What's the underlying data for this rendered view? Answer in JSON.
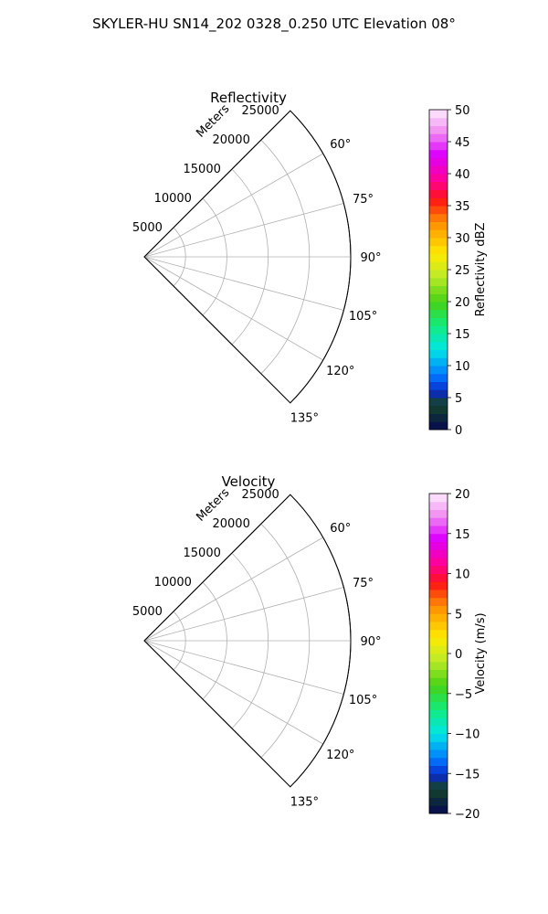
{
  "figure_title": "SKYLER-HU  SN14_202  0328_0.250 UTC Elevation 08°",
  "chart_data": [
    {
      "type": "polar-sector",
      "title": "Reflectivity",
      "range_label": "Meters",
      "range_ticks": [
        "5000",
        "10000",
        "15000",
        "20000",
        "25000"
      ],
      "range_values": [
        5000,
        10000,
        15000,
        20000,
        25000
      ],
      "angle_ticks": [
        "60°",
        "75°",
        "90°",
        "105°",
        "120°",
        "135°"
      ],
      "angle_values": [
        60,
        75,
        90,
        105,
        120,
        135
      ],
      "theta_range": [
        45,
        135
      ],
      "r_max": 25000,
      "grid": true,
      "colorbar": {
        "label": "Reflectivity dBZ",
        "vmin": 0,
        "vmax": 50,
        "ticks": [
          0,
          5,
          10,
          15,
          20,
          25,
          30,
          35,
          40,
          45,
          50
        ],
        "tick_labels": [
          "0",
          "5",
          "10",
          "15",
          "20",
          "25",
          "30",
          "35",
          "40",
          "45",
          "50"
        ]
      }
    },
    {
      "type": "polar-sector",
      "title": "Velocity",
      "range_label": "Meters",
      "range_ticks": [
        "5000",
        "10000",
        "15000",
        "20000",
        "25000"
      ],
      "range_values": [
        5000,
        10000,
        15000,
        20000,
        25000
      ],
      "angle_ticks": [
        "60°",
        "75°",
        "90°",
        "105°",
        "120°",
        "135°"
      ],
      "angle_values": [
        60,
        75,
        90,
        105,
        120,
        135
      ],
      "theta_range": [
        45,
        135
      ],
      "r_max": 25000,
      "grid": true,
      "colorbar": {
        "label": "Velocity (m/s)",
        "vmin": -20,
        "vmax": 20,
        "ticks": [
          -20,
          -15,
          -10,
          -5,
          0,
          5,
          10,
          15,
          20
        ],
        "tick_labels": [
          "−20",
          "−15",
          "−10",
          "−5",
          "0",
          "5",
          "10",
          "15",
          "20"
        ]
      }
    }
  ]
}
